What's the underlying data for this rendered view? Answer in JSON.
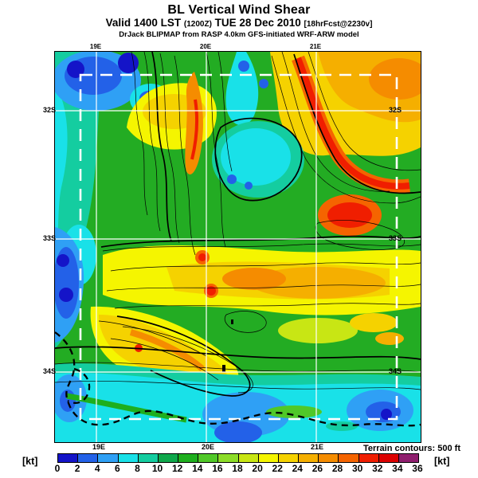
{
  "header": {
    "title": "BL Vertical Wind Shear",
    "valid_prefix": "Valid 1400 LST",
    "valid_zulu": "(1200Z)",
    "valid_date": "TUE 28 Dec 2010",
    "valid_fcst": "[18hrFcst@2230v]",
    "model_line": "DrJack BLIPMAP from RASP 4.0km GFS-initiated WRF-ARW model"
  },
  "map": {
    "top_labels": [
      "19E",
      "20E",
      "21E"
    ],
    "bottom_labels": [
      "19E",
      "20E",
      "21E"
    ],
    "left_labels": [
      "32S",
      "33S",
      "34S"
    ],
    "right_labels": [
      "32S",
      "33S",
      "34S"
    ],
    "terrain_note": "Terrain contours: 500 ft"
  },
  "colorbar": {
    "unit_left": "[kt]",
    "unit_right": "[kt]",
    "ticks": [
      "0",
      "2",
      "4",
      "6",
      "8",
      "10",
      "12",
      "14",
      "16",
      "18",
      "20",
      "22",
      "24",
      "26",
      "28",
      "30",
      "32",
      "34",
      "36"
    ],
    "colors": [
      "#1414C8",
      "#2361E8",
      "#2FA0F5",
      "#19E1E8",
      "#14CDA0",
      "#0FA84B",
      "#1EAF1E",
      "#50C828",
      "#8CDC28",
      "#C8E614",
      "#F5F500",
      "#F5D200",
      "#F5AF00",
      "#F58C00",
      "#F56400",
      "#F01E00",
      "#DC0000",
      "#8F1E6E"
    ]
  },
  "chart_data": {
    "type": "heatmap",
    "title": "BL Vertical Wind Shear",
    "variable": "Boundary-layer vertical wind shear (filled contours)",
    "units": "kt",
    "valid": "1400 LST (1200Z) TUE 28 Dec 2010",
    "forecast_note": "18hrFcst@2230v",
    "model": "DrJack BLIPMAP from RASP 4.0km GFS-initiated WRF-ARW model",
    "scale": {
      "min": 0,
      "max": 36,
      "step": 2,
      "palette": "rainbow dark-blue to purple",
      "orientation": "horizontal bottom"
    },
    "graticule": {
      "meridians": [
        "19E",
        "20E",
        "21E"
      ],
      "parallels": [
        "32S",
        "33S",
        "34S"
      ],
      "style": "solid white lines; dashed white inner domain box"
    },
    "overlays": [
      "black terrain contour lines every 500 ft",
      "thick dashed black coastline along south-west (Western Cape, South Africa)"
    ],
    "notable_features": [
      "High shear arc 28-36 kt running NE-SW through upper-right quadrant near 21E/32S",
      "Broad 20-28 kt orange-yellow zone across upper-right and mid-map band near 33S",
      "Yellow-orange ridge bands along mountain ranges between 19E and 20E",
      "Low shear 0-6 kt blue pockets: top-left corner, left edge near 33S, bottom-right near 34S",
      "Cyan 4-10 kt along southern coastal strip below 34S"
    ]
  }
}
